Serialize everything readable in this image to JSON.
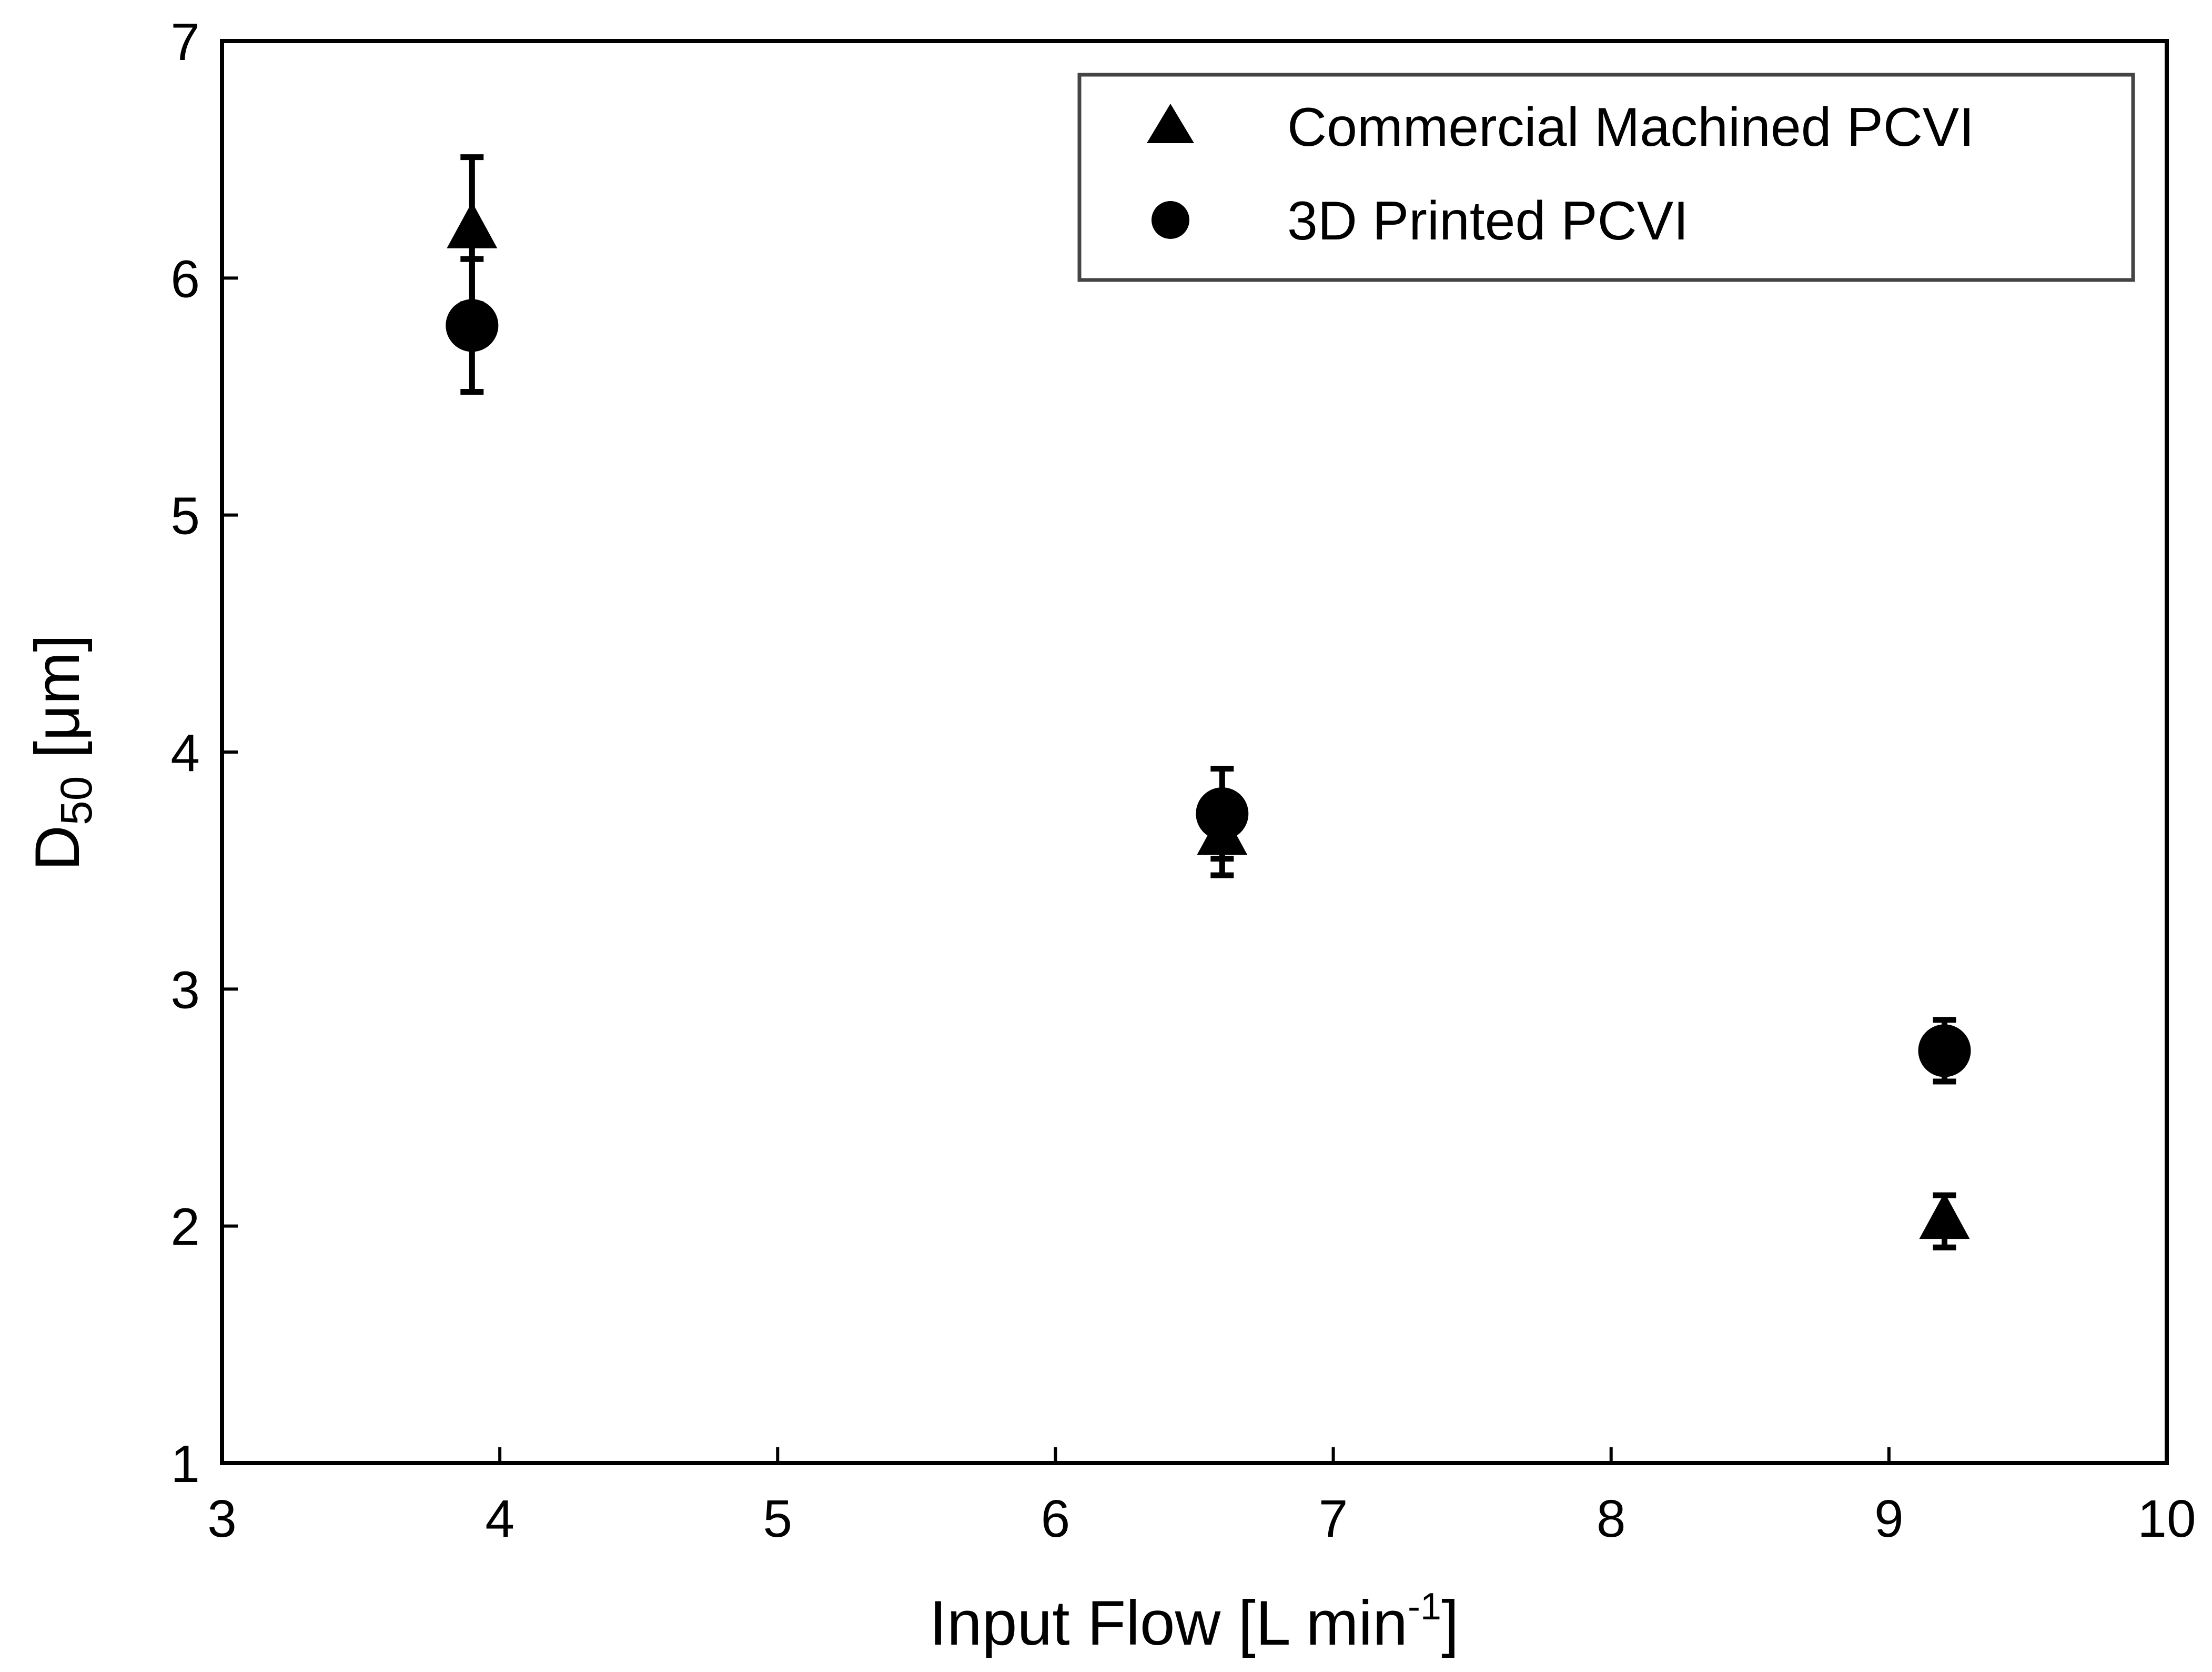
{
  "chart_data": {
    "type": "scatter",
    "xlabel": "Input Flow [L min",
    "xlabel_superscript": "-1",
    "xlabel_suffix": "]",
    "ylabel": "D",
    "ylabel_subscript": "50",
    "ylabel_suffix": " [μm]",
    "xlim": [
      3,
      10
    ],
    "ylim": [
      1,
      7
    ],
    "xticks": [
      3,
      4,
      5,
      6,
      7,
      8,
      9,
      10
    ],
    "yticks": [
      1,
      2,
      3,
      4,
      5,
      6,
      7
    ],
    "grid": false,
    "legend_position": "top-right",
    "series": [
      {
        "name": "Commercial Machined PCVI",
        "marker": "triangle",
        "color": "#000000",
        "x": [
          3.9,
          6.6,
          9.2
        ],
        "y": [
          6.2,
          3.64,
          2.02
        ],
        "err": [
          0.31,
          0.16,
          0.11
        ]
      },
      {
        "name": "3D Printed PCVI",
        "marker": "circle",
        "color": "#000000",
        "x": [
          3.9,
          6.6,
          9.2
        ],
        "y": [
          5.8,
          3.74,
          2.74
        ],
        "err": [
          0.28,
          0.19,
          0.13
        ]
      }
    ]
  }
}
